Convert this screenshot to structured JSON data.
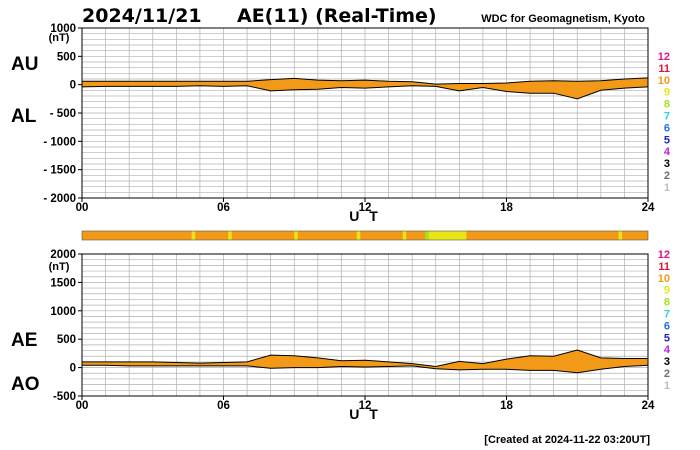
{
  "header": {
    "date": "2024/11/21",
    "title": "AE(11) (Real-Time)",
    "org": "WDC for Geomagnetism, Kyoto"
  },
  "footer": "[Created at 2024-11-22 03:20UT]",
  "colors": {
    "band_fill": "#f29a18",
    "band_edge": "#000000",
    "grid": "#b0b0b0",
    "legend": {
      "12": "#e0158a",
      "11": "#e8103c",
      "10": "#f29a18",
      "9": "#e6e617",
      "8": "#a6e21c",
      "7": "#2ed3d3",
      "6": "#1f6ee6",
      "5": "#2222c0",
      "4": "#c21fe0",
      "3": "#000000",
      "2": "#707070",
      "1": "#bdbdbd"
    }
  },
  "legend": [
    "12",
    "11",
    "10",
    "9",
    "8",
    "7",
    "6",
    "5",
    "4",
    "3",
    "2",
    "1"
  ],
  "chart_data": [
    {
      "type": "area",
      "panel": "AU/AL",
      "ylabel_upper": "AU",
      "ylabel_lower": "AL",
      "unit": "(nT)",
      "xlabel": "U T",
      "x_ticks": [
        "00",
        "06",
        "12",
        "18",
        "24"
      ],
      "y_ticks": [
        "1000",
        "500",
        "0",
        "- 500",
        "- 1000",
        "- 1500",
        "- 2000"
      ],
      "y_tick_values": [
        1000,
        500,
        0,
        -500,
        -1000,
        -1500,
        -2000
      ],
      "ylim": [
        -2000,
        1000
      ],
      "xlim": [
        0,
        24
      ],
      "grid": true,
      "x": [
        0,
        1,
        2,
        3,
        4,
        5,
        6,
        7,
        8,
        9,
        10,
        11,
        12,
        13,
        14,
        15,
        16,
        17,
        18,
        19,
        20,
        21,
        22,
        23,
        24
      ],
      "upper": [
        60,
        60,
        60,
        60,
        60,
        60,
        60,
        60,
        90,
        110,
        80,
        70,
        80,
        60,
        50,
        10,
        20,
        20,
        30,
        60,
        70,
        60,
        70,
        100,
        120
      ],
      "lower": [
        -40,
        -30,
        -30,
        -30,
        -30,
        -20,
        -30,
        -20,
        -110,
        -90,
        -80,
        -50,
        -60,
        -40,
        -20,
        -30,
        -110,
        -50,
        -120,
        -150,
        -150,
        -250,
        -100,
        -60,
        -40
      ]
    },
    {
      "type": "area",
      "panel": "AE/AO",
      "ylabel_upper": "AE",
      "ylabel_lower": "AO",
      "unit": "(nT)",
      "xlabel": "U T",
      "x_ticks": [
        "00",
        "06",
        "12",
        "18",
        "24"
      ],
      "y_ticks": [
        "2000",
        "1500",
        "1000",
        "500",
        "0",
        "-500"
      ],
      "y_tick_values": [
        2000,
        1500,
        1000,
        500,
        0,
        -500
      ],
      "ylim": [
        -500,
        2000
      ],
      "xlim": [
        0,
        24
      ],
      "grid": true,
      "x": [
        0,
        1,
        2,
        3,
        4,
        5,
        6,
        7,
        8,
        9,
        10,
        11,
        12,
        13,
        14,
        15,
        16,
        17,
        18,
        19,
        20,
        21,
        22,
        23,
        24
      ],
      "upper": [
        100,
        100,
        100,
        100,
        90,
        80,
        90,
        100,
        220,
        210,
        170,
        120,
        130,
        100,
        70,
        20,
        110,
        70,
        150,
        210,
        200,
        310,
        170,
        160,
        160
      ],
      "lower": [
        40,
        40,
        30,
        30,
        30,
        30,
        30,
        30,
        -10,
        0,
        0,
        20,
        10,
        20,
        30,
        -20,
        -40,
        -30,
        -30,
        -50,
        -50,
        -90,
        -30,
        20,
        40
      ]
    }
  ],
  "kp_bar": {
    "base": "10",
    "segments": [
      {
        "start": 4.65,
        "end": 4.8,
        "level": "9"
      },
      {
        "start": 6.2,
        "end": 6.35,
        "level": "9"
      },
      {
        "start": 9.0,
        "end": 9.15,
        "level": "9"
      },
      {
        "start": 11.65,
        "end": 11.8,
        "level": "9"
      },
      {
        "start": 13.6,
        "end": 13.75,
        "level": "9"
      },
      {
        "start": 14.55,
        "end": 14.7,
        "level": "8"
      },
      {
        "start": 14.7,
        "end": 16.3,
        "level": "9"
      },
      {
        "start": 22.75,
        "end": 22.9,
        "level": "9"
      }
    ]
  }
}
